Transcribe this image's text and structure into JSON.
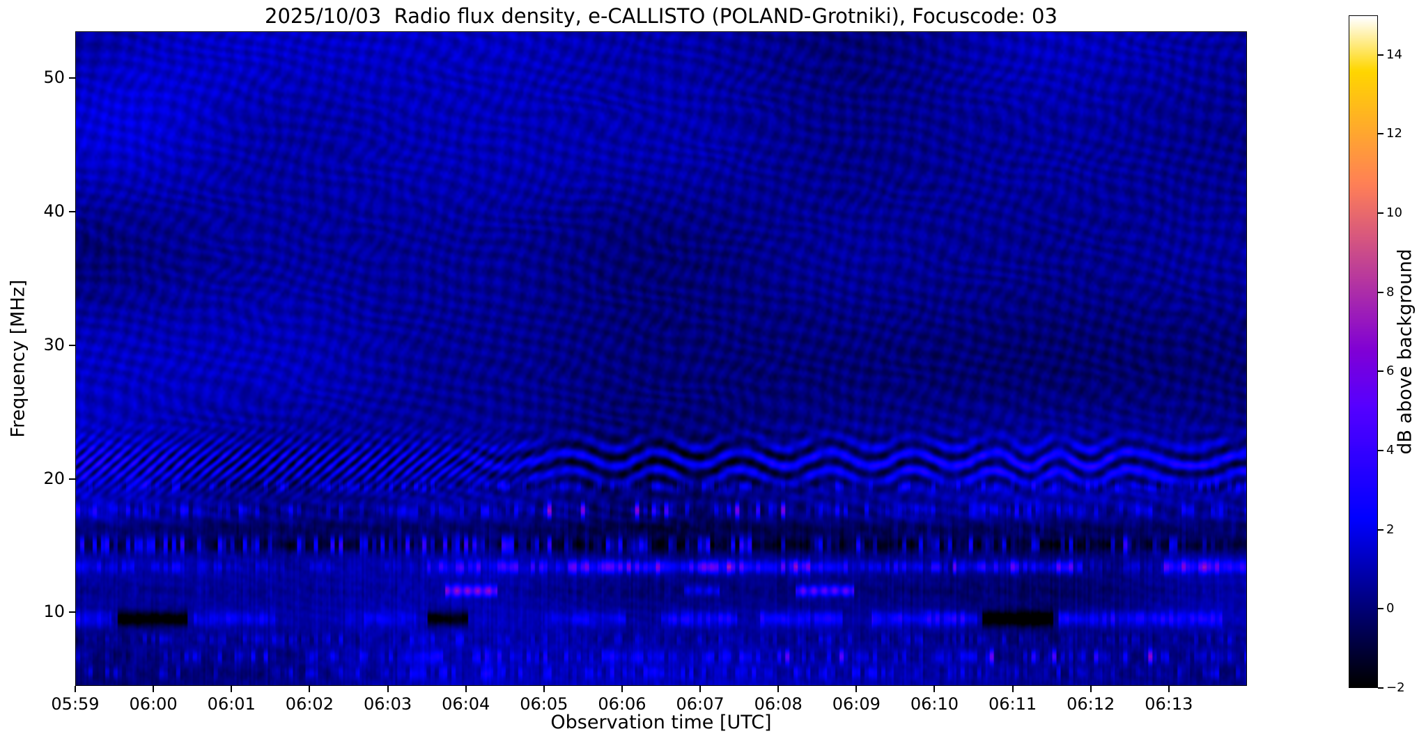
{
  "chart_data": {
    "type": "heatmap",
    "title": "2025/10/03  Radio flux density, e-CALLISTO (POLAND-Grotniki), Focuscode: 03",
    "xlabel": "Observation time [UTC]",
    "ylabel": "Frequency [MHz]",
    "x_ticks": [
      "05:59",
      "06:00",
      "06:01",
      "06:02",
      "06:03",
      "06:04",
      "06:05",
      "06:06",
      "06:07",
      "06:08",
      "06:09",
      "06:10",
      "06:11",
      "06:12",
      "06:13"
    ],
    "x_minutes_span": 15,
    "x_range_utc": [
      "05:59:00",
      "06:14:00"
    ],
    "y_ticks": [
      10,
      20,
      30,
      40,
      50
    ],
    "ylim": [
      4.5,
      53.5
    ],
    "vlim": [
      -2,
      15
    ],
    "grid": false,
    "colormap": "gnuplot2",
    "colorbar": {
      "label": "dB above background",
      "ticks": [
        -2,
        0,
        2,
        4,
        6,
        8,
        10,
        12,
        14
      ],
      "vmin": -2,
      "vmax": 15
    },
    "background_level_db": 0.5,
    "features": [
      {
        "f": 21.2,
        "sigma": 1.25,
        "kind": "stripes",
        "amp": 2.4,
        "note": "interference band 19-23.5 MHz: fine diagonal stripes before ~06:03, wavy horizontal bands after"
      },
      {
        "f": 19.4,
        "sigma": 0.3,
        "kind": "speckle-row",
        "amp": 2.0,
        "note": "faint dotted emission line"
      },
      {
        "f": 17.6,
        "sigma": 0.38,
        "kind": "speckle-row",
        "amp": 2.6,
        "hot": [
          [
            0.4,
            0.52,
            1.0
          ],
          [
            0.56,
            0.63,
            0.7
          ]
        ],
        "note": "bright speckled line, pinkish bursts near 06:05-06:08"
      },
      {
        "f": 16.2,
        "sigma": 0.45,
        "kind": "dark-row",
        "amp": 1.1,
        "note": "dark lane"
      },
      {
        "f": 15.0,
        "sigma": 0.42,
        "kind": "dark-speckle",
        "amp": 3.6,
        "note": "dark broadcast band with bright dashes"
      },
      {
        "f": 13.35,
        "sigma": 0.33,
        "kind": "bright-speckle",
        "amp": 7.0,
        "segments": [
          [
            0.0,
            0.12,
            0.35
          ],
          [
            0.3,
            0.42,
            0.55
          ],
          [
            0.42,
            0.56,
            1.0
          ],
          [
            0.56,
            0.66,
            0.9
          ],
          [
            0.66,
            0.74,
            0.55
          ],
          [
            0.75,
            0.86,
            0.8
          ],
          [
            0.93,
            1.0,
            0.85
          ]
        ],
        "note": "strongest emission row, magenta bursts up to ~9 dB near 06:06-06:10"
      },
      {
        "f": 11.55,
        "sigma": 0.28,
        "kind": "dashes",
        "amp": 6.0,
        "segments": [
          [
            0.315,
            0.36,
            1.0
          ],
          [
            0.52,
            0.55,
            0.35
          ],
          [
            0.615,
            0.665,
            0.9
          ]
        ],
        "note": "bright violet dashes at ~06:04 and ~06:09"
      },
      {
        "f": 9.45,
        "sigma": 0.4,
        "kind": "patchy",
        "amp": 3.2,
        "segments": [
          [
            0.0,
            0.03,
            0.8
          ],
          [
            0.1,
            0.17,
            0.6
          ],
          [
            0.23,
            0.29,
            0.4
          ],
          [
            0.4,
            0.47,
            0.5
          ],
          [
            0.5,
            0.565,
            0.9
          ],
          [
            0.585,
            0.655,
            0.8
          ],
          [
            0.68,
            0.77,
            1.0
          ],
          [
            0.84,
            0.98,
            0.9
          ]
        ],
        "dark": [
          [
            0.035,
            0.095
          ],
          [
            0.3,
            0.335
          ],
          [
            0.775,
            0.835
          ]
        ],
        "note": "intermittent bright blue patches with black gaps"
      },
      {
        "f": 7.9,
        "sigma": 0.3,
        "kind": "speckle-row",
        "amp": 1.8,
        "note": "weak speckle row"
      },
      {
        "f": 6.6,
        "sigma": 0.35,
        "kind": "speckle-row",
        "amp": 2.6,
        "hot": [
          [
            0.6,
            0.66,
            0.6
          ],
          [
            0.78,
            0.97,
            1.0
          ]
        ],
        "note": "speckle row with pink dots after ~06:11"
      },
      {
        "f": 5.4,
        "sigma": 0.35,
        "kind": "speckle-row",
        "amp": 2.2,
        "note": "bottom speckle row"
      }
    ]
  }
}
